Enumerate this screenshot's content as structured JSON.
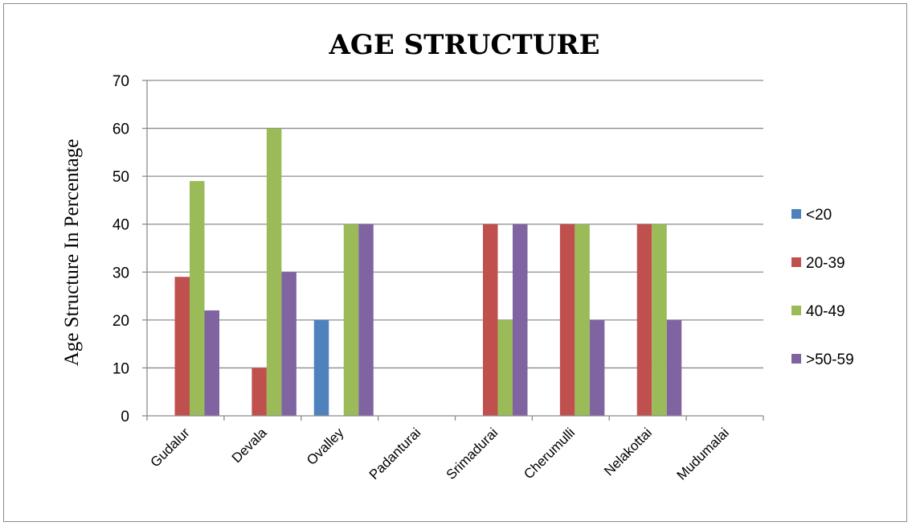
{
  "chart_data": {
    "type": "bar",
    "title": "AGE STRUCTURE",
    "xlabel": "",
    "ylabel": "Age Structure In Percentage",
    "ylim": [
      0,
      70
    ],
    "yticks": [
      0,
      10,
      20,
      30,
      40,
      50,
      60,
      70
    ],
    "grid": true,
    "legend_position": "right",
    "categories": [
      "Gudalur",
      "Devala",
      "Ovalley",
      "Padanturai",
      "Srimadurai",
      "Cherumulli",
      "Nelakottai",
      "Mudumalai"
    ],
    "series": [
      {
        "name": "<20",
        "color": "#4f81bd",
        "values": [
          0,
          0,
          20,
          0,
          0,
          0,
          0,
          0
        ]
      },
      {
        "name": "20-39",
        "color": "#c0504d",
        "values": [
          29,
          10,
          0,
          0,
          40,
          40,
          40,
          0
        ]
      },
      {
        "name": "40-49",
        "color": "#9bbb59",
        "values": [
          49,
          60,
          40,
          0,
          20,
          40,
          40,
          0
        ]
      },
      {
        "name": ">50-59",
        "color": "#8064a2",
        "values": [
          22,
          30,
          40,
          0,
          40,
          20,
          20,
          0
        ]
      }
    ]
  }
}
